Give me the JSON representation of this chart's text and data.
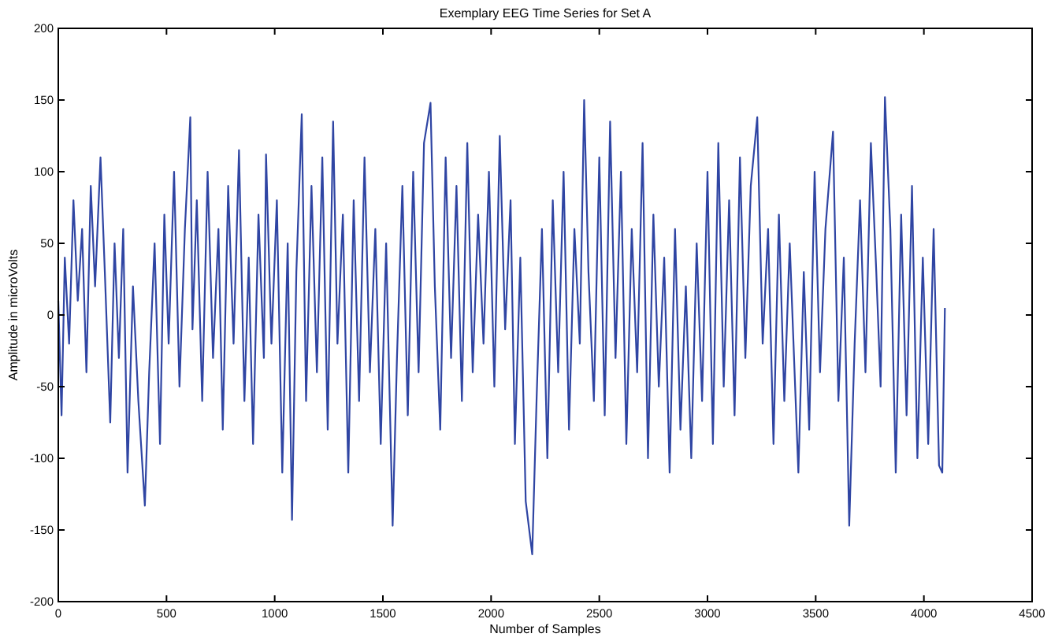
{
  "chart_data": {
    "type": "line",
    "title": "Exemplary EEG Time Series for Set A",
    "xlabel": "Number of Samples",
    "ylabel": "Amplitude in microVolts",
    "xlim": [
      0,
      4500
    ],
    "xticks": [
      0,
      500,
      1000,
      1500,
      2000,
      2500,
      3000,
      3500,
      4000,
      4500
    ],
    "ylim": [
      -200,
      200
    ],
    "yticks": [
      -200,
      -150,
      -100,
      -50,
      0,
      50,
      100,
      150,
      200
    ],
    "grid": false,
    "series": [
      {
        "color": "#2f45a3",
        "x": [
          0,
          15,
          30,
          50,
          70,
          90,
          110,
          130,
          150,
          170,
          195,
          215,
          240,
          260,
          280,
          300,
          320,
          345,
          370,
          400,
          420,
          445,
          470,
          490,
          510,
          535,
          560,
          585,
          610,
          620,
          640,
          665,
          690,
          715,
          740,
          760,
          785,
          810,
          835,
          860,
          880,
          900,
          925,
          950,
          960,
          985,
          1010,
          1035,
          1060,
          1080,
          1100,
          1125,
          1145,
          1170,
          1195,
          1220,
          1245,
          1270,
          1290,
          1315,
          1340,
          1365,
          1390,
          1415,
          1440,
          1465,
          1490,
          1515,
          1545,
          1565,
          1590,
          1615,
          1640,
          1665,
          1690,
          1720,
          1740,
          1765,
          1790,
          1815,
          1840,
          1865,
          1890,
          1915,
          1940,
          1965,
          1990,
          2015,
          2040,
          2065,
          2090,
          2110,
          2135,
          2160,
          2190,
          2210,
          2235,
          2260,
          2285,
          2310,
          2335,
          2360,
          2385,
          2410,
          2430,
          2450,
          2475,
          2500,
          2525,
          2550,
          2575,
          2600,
          2625,
          2650,
          2675,
          2700,
          2725,
          2750,
          2775,
          2800,
          2825,
          2850,
          2875,
          2900,
          2925,
          2950,
          2975,
          3000,
          3025,
          3050,
          3075,
          3100,
          3125,
          3150,
          3175,
          3200,
          3230,
          3255,
          3280,
          3305,
          3330,
          3355,
          3380,
          3420,
          3445,
          3470,
          3495,
          3520,
          3545,
          3580,
          3605,
          3630,
          3655,
          3680,
          3705,
          3730,
          3755,
          3780,
          3800,
          3820,
          3845,
          3870,
          3895,
          3920,
          3945,
          3970,
          3995,
          4020,
          4045,
          4070,
          4085,
          4097
        ],
        "values": [
          10,
          -70,
          40,
          -20,
          80,
          10,
          60,
          -40,
          90,
          20,
          110,
          30,
          -75,
          50,
          -30,
          60,
          -110,
          20,
          -60,
          -133,
          -40,
          50,
          -90,
          70,
          -20,
          100,
          -50,
          60,
          138,
          -10,
          80,
          -60,
          100,
          -30,
          60,
          -80,
          90,
          -20,
          115,
          -60,
          40,
          -90,
          70,
          -30,
          112,
          -20,
          80,
          -110,
          50,
          -143,
          30,
          140,
          -60,
          90,
          -40,
          110,
          -80,
          135,
          -20,
          70,
          -110,
          80,
          -60,
          110,
          -40,
          60,
          -90,
          50,
          -147,
          -30,
          90,
          -70,
          100,
          -40,
          120,
          148,
          20,
          -80,
          110,
          -30,
          90,
          -60,
          120,
          -40,
          70,
          -20,
          100,
          -50,
          125,
          -10,
          80,
          -90,
          40,
          -130,
          -167,
          -60,
          60,
          -100,
          80,
          -40,
          100,
          -80,
          60,
          -20,
          150,
          30,
          -60,
          110,
          -70,
          135,
          -30,
          100,
          -90,
          60,
          -40,
          120,
          -100,
          70,
          -50,
          40,
          -110,
          60,
          -80,
          20,
          -100,
          50,
          -60,
          100,
          -90,
          120,
          -50,
          80,
          -70,
          110,
          -30,
          90,
          138,
          -20,
          60,
          -90,
          70,
          -60,
          50,
          -110,
          30,
          -80,
          100,
          -40,
          60,
          128,
          -60,
          40,
          -147,
          -20,
          80,
          -40,
          120,
          30,
          -50,
          152,
          60,
          -110,
          70,
          -70,
          90,
          -100,
          40,
          -90,
          60,
          -105,
          -110,
          5
        ]
      }
    ]
  }
}
